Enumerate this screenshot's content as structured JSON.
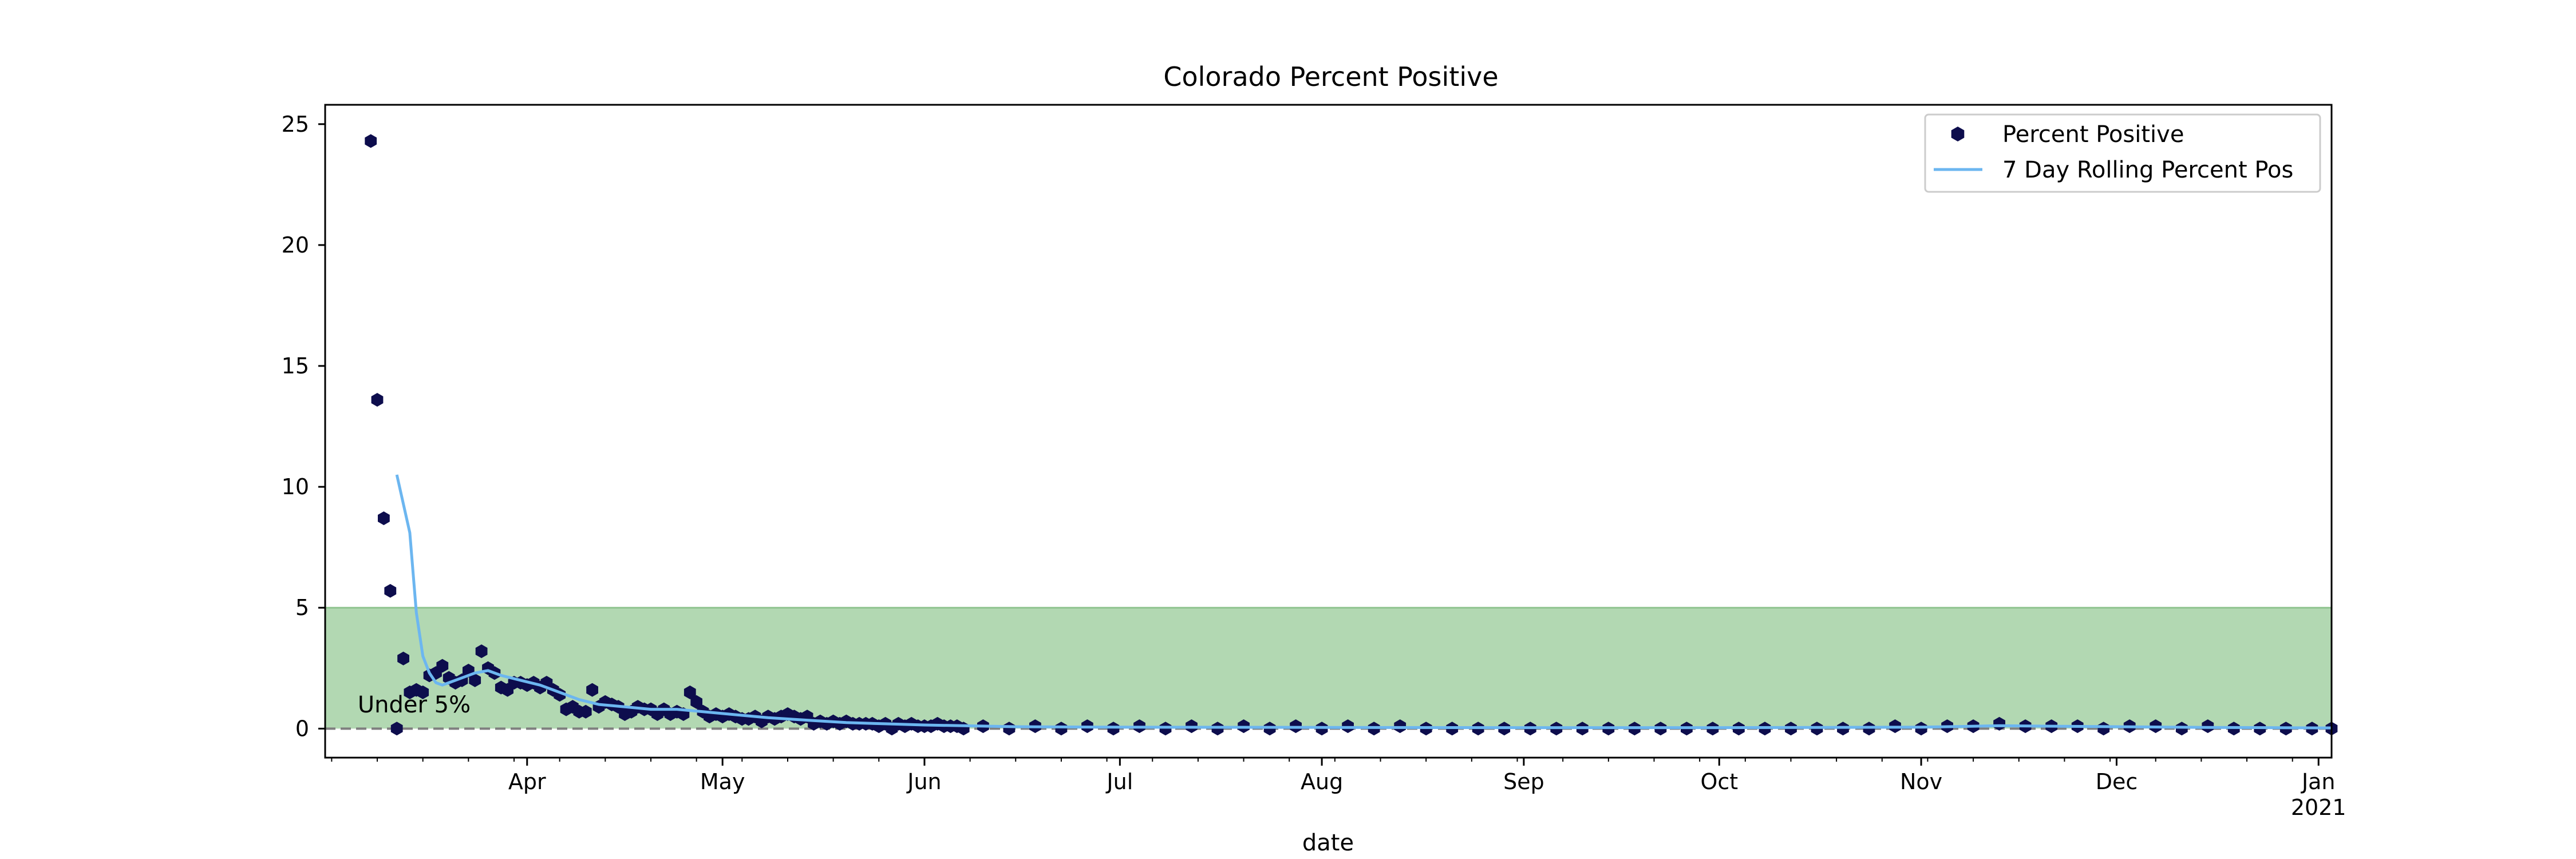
{
  "chart_data": {
    "type": "line",
    "title": "Colorado Percent Positive",
    "xlabel": "date",
    "ylabel": "",
    "x_range": [
      "2020-03-01",
      "2021-01-03"
    ],
    "ylim": [
      -1.2,
      25.8
    ],
    "y_ticks": [
      0,
      5,
      10,
      15,
      20,
      25
    ],
    "x_ticks": [
      {
        "date": "2020-04-01",
        "label": "Apr",
        "sublabel": ""
      },
      {
        "date": "2020-05-01",
        "label": "May",
        "sublabel": ""
      },
      {
        "date": "2020-06-01",
        "label": "Jun",
        "sublabel": ""
      },
      {
        "date": "2020-07-01",
        "label": "Jul",
        "sublabel": ""
      },
      {
        "date": "2020-08-01",
        "label": "Aug",
        "sublabel": ""
      },
      {
        "date": "2020-09-01",
        "label": "Sep",
        "sublabel": ""
      },
      {
        "date": "2020-10-01",
        "label": "Oct",
        "sublabel": ""
      },
      {
        "date": "2020-11-01",
        "label": "Nov",
        "sublabel": ""
      },
      {
        "date": "2020-12-01",
        "label": "Dec",
        "sublabel": ""
      },
      {
        "date": "2021-01-01",
        "label": "Jan",
        "sublabel": "2021"
      }
    ],
    "grid": false,
    "legend_position": "top-right",
    "shaded_band": {
      "y0": 0,
      "y1": 5,
      "color": "#b2d8b2",
      "edge_color": "#8fc48f"
    },
    "reference_line": {
      "y": 0,
      "style": "dashed",
      "color": "#7f7f7f"
    },
    "annotation": {
      "text": "Under 5%",
      "date": "2020-03-06",
      "y": 1.0
    },
    "series": [
      {
        "name": "Percent Positive",
        "kind": "points",
        "marker": "hexagon",
        "color": "#0d0d4d",
        "points": [
          [
            "2020-03-08",
            24.3
          ],
          [
            "2020-03-09",
            13.6
          ],
          [
            "2020-03-10",
            8.7
          ],
          [
            "2020-03-11",
            5.7
          ],
          [
            "2020-03-12",
            0.0
          ],
          [
            "2020-03-13",
            2.9
          ],
          [
            "2020-03-14",
            1.5
          ],
          [
            "2020-03-15",
            1.6
          ],
          [
            "2020-03-16",
            1.5
          ],
          [
            "2020-03-17",
            2.2
          ],
          [
            "2020-03-18",
            2.3
          ],
          [
            "2020-03-19",
            2.6
          ],
          [
            "2020-03-20",
            2.1
          ],
          [
            "2020-03-21",
            1.9
          ],
          [
            "2020-03-22",
            2.0
          ],
          [
            "2020-03-23",
            2.4
          ],
          [
            "2020-03-24",
            2.0
          ],
          [
            "2020-03-25",
            3.2
          ],
          [
            "2020-03-26",
            2.5
          ],
          [
            "2020-03-27",
            2.3
          ],
          [
            "2020-03-28",
            1.7
          ],
          [
            "2020-03-29",
            1.6
          ],
          [
            "2020-03-30",
            1.9
          ],
          [
            "2020-03-31",
            1.9
          ],
          [
            "2020-04-01",
            1.8
          ],
          [
            "2020-04-02",
            1.9
          ],
          [
            "2020-04-03",
            1.7
          ],
          [
            "2020-04-04",
            1.9
          ],
          [
            "2020-04-05",
            1.6
          ],
          [
            "2020-04-06",
            1.4
          ],
          [
            "2020-04-07",
            0.8
          ],
          [
            "2020-04-08",
            0.9
          ],
          [
            "2020-04-09",
            0.7
          ],
          [
            "2020-04-10",
            0.7
          ],
          [
            "2020-04-11",
            1.6
          ],
          [
            "2020-04-12",
            0.9
          ],
          [
            "2020-04-13",
            1.1
          ],
          [
            "2020-04-14",
            1.0
          ],
          [
            "2020-04-15",
            0.9
          ],
          [
            "2020-04-16",
            0.6
          ],
          [
            "2020-04-17",
            0.7
          ],
          [
            "2020-04-18",
            0.9
          ],
          [
            "2020-04-19",
            0.8
          ],
          [
            "2020-04-20",
            0.8
          ],
          [
            "2020-04-21",
            0.6
          ],
          [
            "2020-04-22",
            0.8
          ],
          [
            "2020-04-23",
            0.6
          ],
          [
            "2020-04-24",
            0.7
          ],
          [
            "2020-04-25",
            0.6
          ],
          [
            "2020-04-26",
            1.5
          ],
          [
            "2020-04-27",
            1.1
          ],
          [
            "2020-04-28",
            0.7
          ],
          [
            "2020-04-29",
            0.5
          ],
          [
            "2020-04-30",
            0.6
          ],
          [
            "2020-05-01",
            0.5
          ],
          [
            "2020-05-02",
            0.6
          ],
          [
            "2020-05-03",
            0.5
          ],
          [
            "2020-05-04",
            0.4
          ],
          [
            "2020-05-05",
            0.4
          ],
          [
            "2020-05-06",
            0.5
          ],
          [
            "2020-05-07",
            0.3
          ],
          [
            "2020-05-08",
            0.5
          ],
          [
            "2020-05-09",
            0.4
          ],
          [
            "2020-05-10",
            0.5
          ],
          [
            "2020-05-11",
            0.6
          ],
          [
            "2020-05-12",
            0.5
          ],
          [
            "2020-05-13",
            0.4
          ],
          [
            "2020-05-14",
            0.5
          ],
          [
            "2020-05-15",
            0.2
          ],
          [
            "2020-05-16",
            0.3
          ],
          [
            "2020-05-17",
            0.2
          ],
          [
            "2020-05-18",
            0.3
          ],
          [
            "2020-05-19",
            0.2
          ],
          [
            "2020-05-20",
            0.3
          ],
          [
            "2020-05-21",
            0.2
          ],
          [
            "2020-05-22",
            0.2
          ],
          [
            "2020-05-23",
            0.2
          ],
          [
            "2020-05-24",
            0.2
          ],
          [
            "2020-05-25",
            0.1
          ],
          [
            "2020-05-26",
            0.2
          ],
          [
            "2020-05-27",
            0.0
          ],
          [
            "2020-05-28",
            0.2
          ],
          [
            "2020-05-29",
            0.1
          ],
          [
            "2020-05-30",
            0.2
          ],
          [
            "2020-05-31",
            0.1
          ],
          [
            "2020-06-01",
            0.1
          ],
          [
            "2020-06-02",
            0.1
          ],
          [
            "2020-06-03",
            0.2
          ],
          [
            "2020-06-04",
            0.1
          ],
          [
            "2020-06-05",
            0.1
          ],
          [
            "2020-06-06",
            0.1
          ],
          [
            "2020-06-07",
            0.0
          ],
          [
            "2020-06-10",
            0.1
          ],
          [
            "2020-06-14",
            0.0
          ],
          [
            "2020-06-18",
            0.1
          ],
          [
            "2020-06-22",
            0.0
          ],
          [
            "2020-06-26",
            0.1
          ],
          [
            "2020-06-30",
            0.0
          ],
          [
            "2020-07-04",
            0.1
          ],
          [
            "2020-07-08",
            0.0
          ],
          [
            "2020-07-12",
            0.1
          ],
          [
            "2020-07-16",
            0.0
          ],
          [
            "2020-07-20",
            0.1
          ],
          [
            "2020-07-24",
            0.0
          ],
          [
            "2020-07-28",
            0.1
          ],
          [
            "2020-08-01",
            0.0
          ],
          [
            "2020-08-05",
            0.1
          ],
          [
            "2020-08-09",
            0.0
          ],
          [
            "2020-08-13",
            0.1
          ],
          [
            "2020-08-17",
            0.0
          ],
          [
            "2020-08-21",
            0.0
          ],
          [
            "2020-08-25",
            0.0
          ],
          [
            "2020-08-29",
            0.0
          ],
          [
            "2020-09-02",
            0.0
          ],
          [
            "2020-09-06",
            0.0
          ],
          [
            "2020-09-10",
            0.0
          ],
          [
            "2020-09-14",
            0.0
          ],
          [
            "2020-09-18",
            0.0
          ],
          [
            "2020-09-22",
            0.0
          ],
          [
            "2020-09-26",
            0.0
          ],
          [
            "2020-09-30",
            0.0
          ],
          [
            "2020-10-04",
            0.0
          ],
          [
            "2020-10-08",
            0.0
          ],
          [
            "2020-10-12",
            0.0
          ],
          [
            "2020-10-16",
            0.0
          ],
          [
            "2020-10-20",
            0.0
          ],
          [
            "2020-10-24",
            0.0
          ],
          [
            "2020-10-28",
            0.1
          ],
          [
            "2020-11-01",
            0.0
          ],
          [
            "2020-11-05",
            0.1
          ],
          [
            "2020-11-09",
            0.1
          ],
          [
            "2020-11-13",
            0.2
          ],
          [
            "2020-11-17",
            0.1
          ],
          [
            "2020-11-21",
            0.1
          ],
          [
            "2020-11-25",
            0.1
          ],
          [
            "2020-11-29",
            0.0
          ],
          [
            "2020-12-03",
            0.1
          ],
          [
            "2020-12-07",
            0.1
          ],
          [
            "2020-12-11",
            0.0
          ],
          [
            "2020-12-15",
            0.1
          ],
          [
            "2020-12-19",
            0.0
          ],
          [
            "2020-12-23",
            0.0
          ],
          [
            "2020-12-27",
            0.0
          ],
          [
            "2020-12-31",
            0.0
          ],
          [
            "2021-01-03",
            0.0
          ]
        ]
      },
      {
        "name": "7 Day Rolling Percent Pos",
        "kind": "line",
        "color": "#6cb6f0",
        "points": [
          [
            "2020-03-12",
            10.5
          ],
          [
            "2020-03-14",
            8.1
          ],
          [
            "2020-03-15",
            4.8
          ],
          [
            "2020-03-16",
            3.0
          ],
          [
            "2020-03-17",
            2.3
          ],
          [
            "2020-03-18",
            1.9
          ],
          [
            "2020-03-19",
            1.8
          ],
          [
            "2020-03-20",
            1.9
          ],
          [
            "2020-03-22",
            2.1
          ],
          [
            "2020-03-24",
            2.3
          ],
          [
            "2020-03-26",
            2.4
          ],
          [
            "2020-03-28",
            2.2
          ],
          [
            "2020-03-31",
            2.0
          ],
          [
            "2020-04-03",
            1.8
          ],
          [
            "2020-04-06",
            1.5
          ],
          [
            "2020-04-09",
            1.2
          ],
          [
            "2020-04-12",
            1.0
          ],
          [
            "2020-04-16",
            0.9
          ],
          [
            "2020-04-20",
            0.8
          ],
          [
            "2020-04-24",
            0.8
          ],
          [
            "2020-04-28",
            0.7
          ],
          [
            "2020-05-02",
            0.6
          ],
          [
            "2020-05-08",
            0.45
          ],
          [
            "2020-05-14",
            0.35
          ],
          [
            "2020-05-20",
            0.25
          ],
          [
            "2020-05-26",
            0.2
          ],
          [
            "2020-06-01",
            0.15
          ],
          [
            "2020-06-15",
            0.08
          ],
          [
            "2020-07-01",
            0.06
          ],
          [
            "2020-08-01",
            0.05
          ],
          [
            "2020-09-01",
            0.04
          ],
          [
            "2020-10-01",
            0.04
          ],
          [
            "2020-11-01",
            0.06
          ],
          [
            "2020-11-13",
            0.12
          ],
          [
            "2020-12-01",
            0.08
          ],
          [
            "2020-12-15",
            0.05
          ],
          [
            "2021-01-03",
            0.03
          ]
        ]
      }
    ]
  }
}
